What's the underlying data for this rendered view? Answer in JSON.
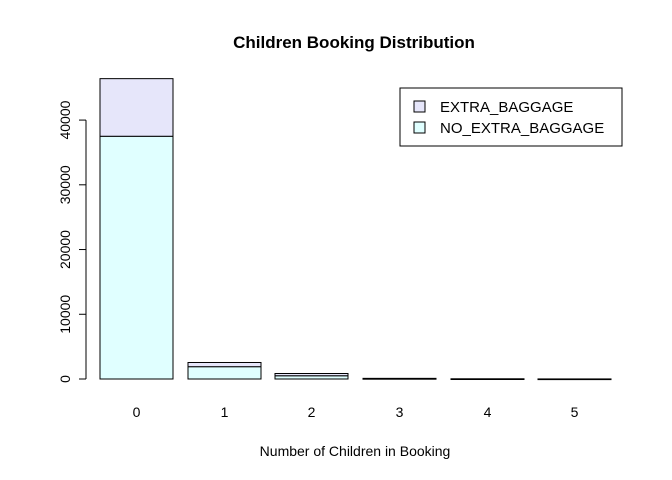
{
  "chart_data": {
    "type": "bar",
    "stacked": true,
    "title": "Children Booking Distribution",
    "xlabel": "Number of Children in Booking",
    "ylabel": "",
    "categories": [
      "0",
      "1",
      "2",
      "3",
      "4",
      "5"
    ],
    "series": [
      {
        "name": "NO_EXTRA_BAGGAGE",
        "color": "#E0FFFF",
        "values": [
          37500,
          1900,
          500,
          60,
          15,
          5
        ]
      },
      {
        "name": "EXTRA_BAGGAGE",
        "color": "#E6E6FA",
        "values": [
          8900,
          650,
          350,
          40,
          10,
          3
        ]
      }
    ],
    "ylim": [
      0,
      46500
    ],
    "yticks": [
      0,
      10000,
      20000,
      30000,
      40000
    ],
    "ytick_labels": [
      "0",
      "10000",
      "20000",
      "30000",
      "40000"
    ],
    "legend": {
      "position": "top-right",
      "entries": [
        "EXTRA_BAGGAGE",
        "NO_EXTRA_BAGGAGE"
      ]
    },
    "grid": false
  }
}
